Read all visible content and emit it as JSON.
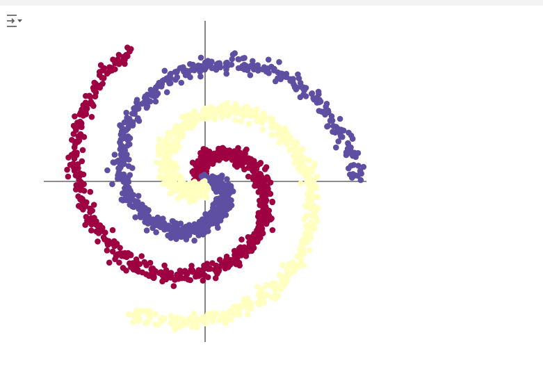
{
  "cell_output": {
    "toggle_icon": "output-collapse-icon"
  },
  "chart_data": {
    "type": "scatter",
    "title": "",
    "xlabel": "",
    "ylabel": "",
    "xlim": [
      -1.0,
      1.0
    ],
    "ylim": [
      -1.0,
      1.0
    ],
    "axes_style": "crosshair-through-origin",
    "grid": false,
    "ticks": false,
    "legend": "none",
    "series": [
      {
        "color": "#9e0142",
        "shape": "spiral-arm",
        "angle_start_deg": 135,
        "angle_end_deg": -240,
        "radius_start": 0.02,
        "radius_end": 0.94,
        "noise": 0.025,
        "points_visible_estimate": 700
      },
      {
        "color": "#5e4fa2",
        "shape": "spiral-arm",
        "angle_start_deg": 15,
        "angle_end_deg": -360,
        "radius_start": 0.02,
        "radius_end": 0.94,
        "noise": 0.025,
        "points_visible_estimate": 700
      },
      {
        "color": "#ffffbf",
        "shape": "spiral-arm",
        "angle_start_deg": -105,
        "angle_end_deg": -480,
        "radius_start": 0.02,
        "radius_end": 0.94,
        "noise": 0.025,
        "points_visible_estimate": 700
      }
    ]
  }
}
